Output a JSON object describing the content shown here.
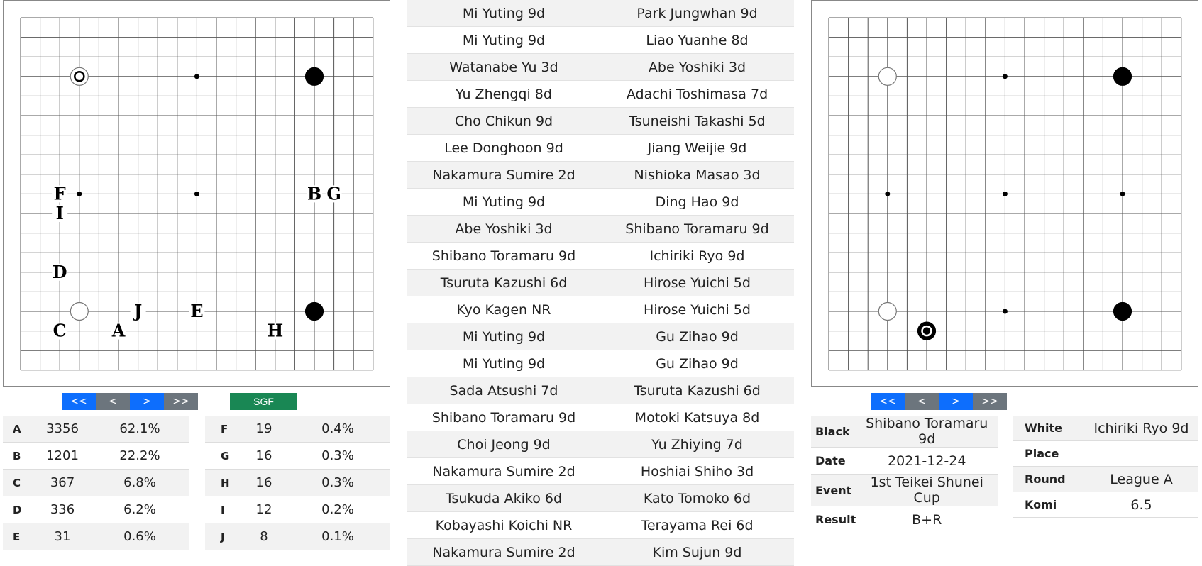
{
  "left_board": {
    "stones": [
      {
        "col": 3,
        "row": 3,
        "color": "white",
        "last": true
      },
      {
        "col": 15,
        "row": 3,
        "color": "black"
      },
      {
        "col": 3,
        "row": 15,
        "color": "white"
      },
      {
        "col": 15,
        "row": 15,
        "color": "black"
      }
    ],
    "labels": [
      {
        "text": "A",
        "col": 5,
        "row": 16
      },
      {
        "text": "B",
        "col": 15,
        "row": 9
      },
      {
        "text": "C",
        "col": 2,
        "row": 16
      },
      {
        "text": "D",
        "col": 2,
        "row": 13
      },
      {
        "text": "E",
        "col": 9,
        "row": 15
      },
      {
        "text": "F",
        "col": 2,
        "row": 9
      },
      {
        "text": "G",
        "col": 16,
        "row": 9
      },
      {
        "text": "H",
        "col": 13,
        "row": 16
      },
      {
        "text": "I",
        "col": 2,
        "row": 10
      },
      {
        "text": "J",
        "col": 6,
        "row": 15
      }
    ]
  },
  "right_board": {
    "stones": [
      {
        "col": 3,
        "row": 3,
        "color": "white"
      },
      {
        "col": 15,
        "row": 3,
        "color": "black"
      },
      {
        "col": 3,
        "row": 15,
        "color": "white"
      },
      {
        "col": 15,
        "row": 15,
        "color": "black"
      },
      {
        "col": 5,
        "row": 16,
        "color": "black",
        "last": true
      }
    ]
  },
  "nav": {
    "first": "<<",
    "prev": "<",
    "next": ">",
    "last": ">>"
  },
  "sgf_label": "SGF",
  "stats_left": [
    {
      "label": "A",
      "count": "3356",
      "pct": "62.1%"
    },
    {
      "label": "B",
      "count": "1201",
      "pct": "22.2%"
    },
    {
      "label": "C",
      "count": "367",
      "pct": "6.8%"
    },
    {
      "label": "D",
      "count": "336",
      "pct": "6.2%"
    },
    {
      "label": "E",
      "count": "31",
      "pct": "0.6%"
    }
  ],
  "stats_right": [
    {
      "label": "F",
      "count": "19",
      "pct": "0.4%"
    },
    {
      "label": "G",
      "count": "16",
      "pct": "0.3%"
    },
    {
      "label": "H",
      "count": "16",
      "pct": "0.3%"
    },
    {
      "label": "I",
      "count": "12",
      "pct": "0.2%"
    },
    {
      "label": "J",
      "count": "8",
      "pct": "0.1%"
    }
  ],
  "games": [
    {
      "black": "Mi Yuting 9d",
      "white": "Park Jungwhan 9d"
    },
    {
      "black": "Mi Yuting 9d",
      "white": "Liao Yuanhe 8d"
    },
    {
      "black": "Watanabe Yu 3d",
      "white": "Abe Yoshiki 3d"
    },
    {
      "black": "Yu Zhengqi 8d",
      "white": "Adachi Toshimasa 7d"
    },
    {
      "black": "Cho Chikun 9d",
      "white": "Tsuneishi Takashi 5d"
    },
    {
      "black": "Lee Donghoon 9d",
      "white": "Jiang Weijie 9d"
    },
    {
      "black": "Nakamura Sumire 2d",
      "white": "Nishioka Masao 3d"
    },
    {
      "black": "Mi Yuting 9d",
      "white": "Ding Hao 9d"
    },
    {
      "black": "Abe Yoshiki 3d",
      "white": "Shibano Toramaru 9d"
    },
    {
      "black": "Shibano Toramaru 9d",
      "white": "Ichiriki Ryo 9d"
    },
    {
      "black": "Tsuruta Kazushi 6d",
      "white": "Hirose Yuichi 5d"
    },
    {
      "black": "Kyo Kagen NR",
      "white": "Hirose Yuichi 5d"
    },
    {
      "black": "Mi Yuting 9d",
      "white": "Gu Zihao 9d"
    },
    {
      "black": "Mi Yuting 9d",
      "white": "Gu Zihao 9d"
    },
    {
      "black": "Sada Atsushi 7d",
      "white": "Tsuruta Kazushi 6d"
    },
    {
      "black": "Shibano Toramaru 9d",
      "white": "Motoki Katsuya 8d"
    },
    {
      "black": "Choi Jeong 9d",
      "white": "Yu Zhiying 7d"
    },
    {
      "black": "Nakamura Sumire 2d",
      "white": "Hoshiai Shiho 3d"
    },
    {
      "black": "Tsukuda Akiko 6d",
      "white": "Kato Tomoko 6d"
    },
    {
      "black": "Kobayashi Koichi NR",
      "white": "Terayama Rei 6d"
    },
    {
      "black": "Nakamura Sumire 2d",
      "white": "Kim Sujun 9d"
    }
  ],
  "game_info": {
    "black_key": "Black",
    "black": "Shibano Toramaru 9d",
    "date_key": "Date",
    "date": "2021-12-24",
    "event_key": "Event",
    "event": "1st Teikei Shunei Cup",
    "result_key": "Result",
    "result": "B+R",
    "white_key": "White",
    "white": "Ichiriki Ryo 9d",
    "place_key": "Place",
    "place": "",
    "round_key": "Round",
    "round": "League A",
    "komi_key": "Komi",
    "komi": "6.5"
  },
  "colors": {
    "nav_blue": "#0d6efd",
    "nav_gray": "#6c757d",
    "sgf_green": "#198754"
  }
}
